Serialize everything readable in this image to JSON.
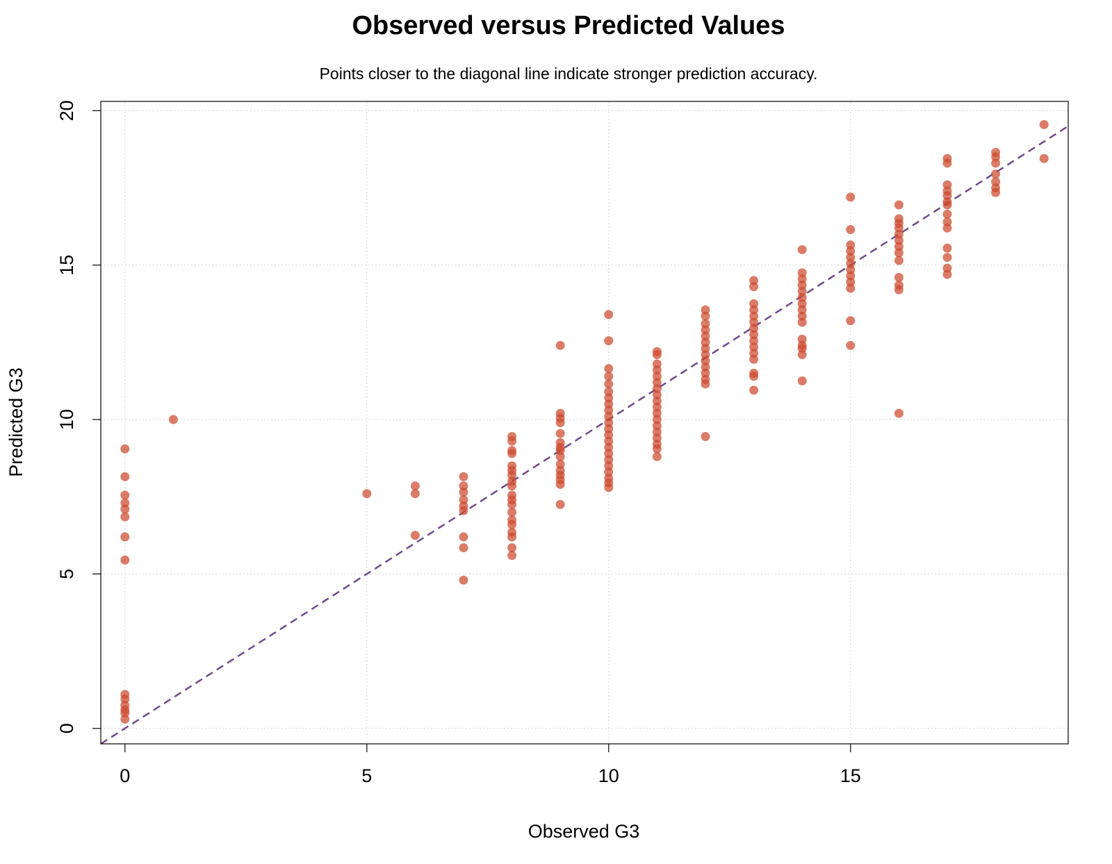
{
  "chart_data": {
    "type": "scatter",
    "title": "Observed versus Predicted Values",
    "subtitle": "Points closer to the diagonal line indicate stronger prediction accuracy.",
    "xlabel": "Observed G3",
    "ylabel": "Predicted G3",
    "xlim": [
      -0.5,
      19.5
    ],
    "ylim": [
      -0.5,
      20.3
    ],
    "xticks": [
      "0",
      "5",
      "10",
      "15"
    ],
    "yticks": [
      "0",
      "5",
      "10",
      "15",
      "20"
    ],
    "grid": true,
    "reference_line": {
      "slope": 1,
      "intercept": 0,
      "style": "dashed",
      "color": "#6b4c8a"
    },
    "point_color": "#cc4a2e",
    "points": [
      [
        0,
        9.05
      ],
      [
        0,
        8.15
      ],
      [
        0,
        7.55
      ],
      [
        0,
        7.3
      ],
      [
        0,
        7.1
      ],
      [
        0,
        6.85
      ],
      [
        0,
        6.2
      ],
      [
        0,
        5.45
      ],
      [
        0,
        1.1
      ],
      [
        0,
        0.95
      ],
      [
        0,
        0.75
      ],
      [
        0,
        0.6
      ],
      [
        0,
        0.5
      ],
      [
        0,
        0.3
      ],
      [
        1,
        10.0
      ],
      [
        5,
        7.6
      ],
      [
        6,
        7.85
      ],
      [
        6,
        7.6
      ],
      [
        6,
        6.25
      ],
      [
        7,
        8.15
      ],
      [
        7,
        7.85
      ],
      [
        7,
        7.65
      ],
      [
        7,
        7.4
      ],
      [
        7,
        7.2
      ],
      [
        7,
        7.05
      ],
      [
        7,
        6.2
      ],
      [
        7,
        5.85
      ],
      [
        7,
        4.8
      ],
      [
        8,
        9.45
      ],
      [
        8,
        9.3
      ],
      [
        8,
        9.0
      ],
      [
        8,
        8.9
      ],
      [
        8,
        8.5
      ],
      [
        8,
        8.35
      ],
      [
        8,
        8.2
      ],
      [
        8,
        8.0
      ],
      [
        8,
        7.85
      ],
      [
        8,
        7.55
      ],
      [
        8,
        7.4
      ],
      [
        8,
        7.25
      ],
      [
        8,
        7.0
      ],
      [
        8,
        6.75
      ],
      [
        8,
        6.6
      ],
      [
        8,
        6.35
      ],
      [
        8,
        6.2
      ],
      [
        8,
        5.85
      ],
      [
        8,
        5.6
      ],
      [
        9,
        12.4
      ],
      [
        9,
        10.2
      ],
      [
        9,
        10.05
      ],
      [
        9,
        9.9
      ],
      [
        9,
        9.55
      ],
      [
        9,
        9.25
      ],
      [
        9,
        9.1
      ],
      [
        9,
        9.0
      ],
      [
        9,
        8.8
      ],
      [
        9,
        8.55
      ],
      [
        9,
        8.35
      ],
      [
        9,
        8.2
      ],
      [
        9,
        8.05
      ],
      [
        9,
        7.9
      ],
      [
        9,
        7.25
      ],
      [
        10,
        13.4
      ],
      [
        10,
        12.55
      ],
      [
        10,
        11.65
      ],
      [
        10,
        11.4
      ],
      [
        10,
        11.15
      ],
      [
        10,
        10.9
      ],
      [
        10,
        10.7
      ],
      [
        10,
        10.5
      ],
      [
        10,
        10.3
      ],
      [
        10,
        10.1
      ],
      [
        10,
        9.9
      ],
      [
        10,
        9.7
      ],
      [
        10,
        9.5
      ],
      [
        10,
        9.3
      ],
      [
        10,
        9.1
      ],
      [
        10,
        8.9
      ],
      [
        10,
        8.7
      ],
      [
        10,
        8.5
      ],
      [
        10,
        8.3
      ],
      [
        10,
        8.1
      ],
      [
        10,
        7.95
      ],
      [
        10,
        7.8
      ],
      [
        11,
        12.2
      ],
      [
        11,
        12.1
      ],
      [
        11,
        11.8
      ],
      [
        11,
        11.6
      ],
      [
        11,
        11.4
      ],
      [
        11,
        11.2
      ],
      [
        11,
        11.0
      ],
      [
        11,
        10.8
      ],
      [
        11,
        10.6
      ],
      [
        11,
        10.4
      ],
      [
        11,
        10.2
      ],
      [
        11,
        10.0
      ],
      [
        11,
        9.8
      ],
      [
        11,
        9.6
      ],
      [
        11,
        9.4
      ],
      [
        11,
        9.2
      ],
      [
        11,
        9.05
      ],
      [
        11,
        8.8
      ],
      [
        12,
        13.55
      ],
      [
        12,
        13.35
      ],
      [
        12,
        13.1
      ],
      [
        12,
        12.9
      ],
      [
        12,
        12.7
      ],
      [
        12,
        12.5
      ],
      [
        12,
        12.3
      ],
      [
        12,
        12.1
      ],
      [
        12,
        11.9
      ],
      [
        12,
        11.7
      ],
      [
        12,
        11.5
      ],
      [
        12,
        11.3
      ],
      [
        12,
        11.15
      ],
      [
        12,
        9.45
      ],
      [
        13,
        14.5
      ],
      [
        13,
        14.3
      ],
      [
        13,
        13.75
      ],
      [
        13,
        13.55
      ],
      [
        13,
        13.35
      ],
      [
        13,
        13.15
      ],
      [
        13,
        12.95
      ],
      [
        13,
        12.75
      ],
      [
        13,
        12.55
      ],
      [
        13,
        12.35
      ],
      [
        13,
        12.15
      ],
      [
        13,
        11.95
      ],
      [
        13,
        11.5
      ],
      [
        13,
        11.4
      ],
      [
        13,
        10.95
      ],
      [
        14,
        15.5
      ],
      [
        14,
        14.75
      ],
      [
        14,
        14.55
      ],
      [
        14,
        14.35
      ],
      [
        14,
        14.15
      ],
      [
        14,
        13.95
      ],
      [
        14,
        13.75
      ],
      [
        14,
        13.55
      ],
      [
        14,
        13.35
      ],
      [
        14,
        13.15
      ],
      [
        14,
        12.6
      ],
      [
        14,
        12.4
      ],
      [
        14,
        12.3
      ],
      [
        14,
        12.1
      ],
      [
        14,
        11.25
      ],
      [
        15,
        17.2
      ],
      [
        15,
        16.15
      ],
      [
        15,
        15.65
      ],
      [
        15,
        15.45
      ],
      [
        15,
        15.25
      ],
      [
        15,
        15.05
      ],
      [
        15,
        14.85
      ],
      [
        15,
        14.65
      ],
      [
        15,
        14.45
      ],
      [
        15,
        14.25
      ],
      [
        15,
        13.2
      ],
      [
        15,
        12.4
      ],
      [
        16,
        16.95
      ],
      [
        16,
        16.5
      ],
      [
        16,
        16.35
      ],
      [
        16,
        16.2
      ],
      [
        16,
        16.0
      ],
      [
        16,
        15.8
      ],
      [
        16,
        15.6
      ],
      [
        16,
        15.4
      ],
      [
        16,
        15.15
      ],
      [
        16,
        14.6
      ],
      [
        16,
        14.35
      ],
      [
        16,
        14.2
      ],
      [
        16,
        10.2
      ],
      [
        17,
        18.45
      ],
      [
        17,
        18.3
      ],
      [
        17,
        17.6
      ],
      [
        17,
        17.4
      ],
      [
        17,
        17.25
      ],
      [
        17,
        17.05
      ],
      [
        17,
        16.95
      ],
      [
        17,
        16.65
      ],
      [
        17,
        16.4
      ],
      [
        17,
        16.2
      ],
      [
        17,
        15.55
      ],
      [
        17,
        15.25
      ],
      [
        17,
        14.9
      ],
      [
        17,
        14.7
      ],
      [
        18,
        18.65
      ],
      [
        18,
        18.5
      ],
      [
        18,
        18.3
      ],
      [
        18,
        17.95
      ],
      [
        18,
        17.7
      ],
      [
        18,
        17.5
      ],
      [
        18,
        17.35
      ],
      [
        19,
        19.55
      ],
      [
        19,
        18.45
      ]
    ]
  }
}
